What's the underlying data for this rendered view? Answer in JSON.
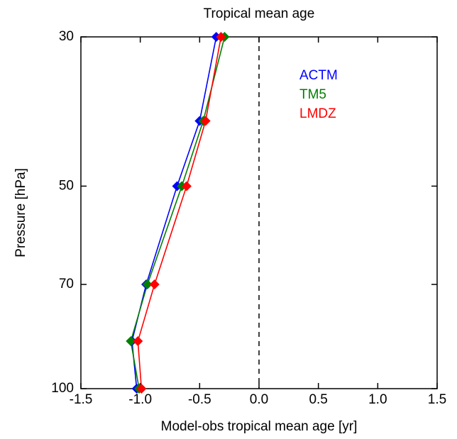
{
  "chart_data": {
    "type": "line",
    "title": "Tropical mean age",
    "xlabel": "Model-obs tropical mean age [yr]",
    "ylabel": "Pressure [hPa]",
    "y": [
      30,
      40,
      50,
      70,
      85,
      100
    ],
    "series": [
      {
        "name": "ACTM",
        "color": "#0000ff",
        "values": [
          -0.36,
          -0.5,
          -0.69,
          -0.95,
          -1.07,
          -1.03
        ]
      },
      {
        "name": "TM5",
        "color": "#008000",
        "values": [
          -0.29,
          -0.47,
          -0.65,
          -0.94,
          -1.08,
          -1.01
        ]
      },
      {
        "name": "LMDZ",
        "color": "#ff0000",
        "values": [
          -0.32,
          -0.45,
          -0.61,
          -0.88,
          -1.02,
          -0.99
        ]
      }
    ],
    "xlim": [
      -1.5,
      1.5
    ],
    "xticks": [
      -1.5,
      {
        "value": -1.0,
        "label": "-1.0"
      },
      -0.5,
      {
        "value": 0.0,
        "label": "0.0"
      },
      0.5,
      {
        "value": 1.0,
        "label": "1.0"
      },
      1.5
    ],
    "ylim": [
      100,
      30
    ],
    "yticks": [
      30,
      50,
      70,
      100
    ],
    "y_log_scale": true,
    "vline": 0,
    "legend": "upper right"
  }
}
